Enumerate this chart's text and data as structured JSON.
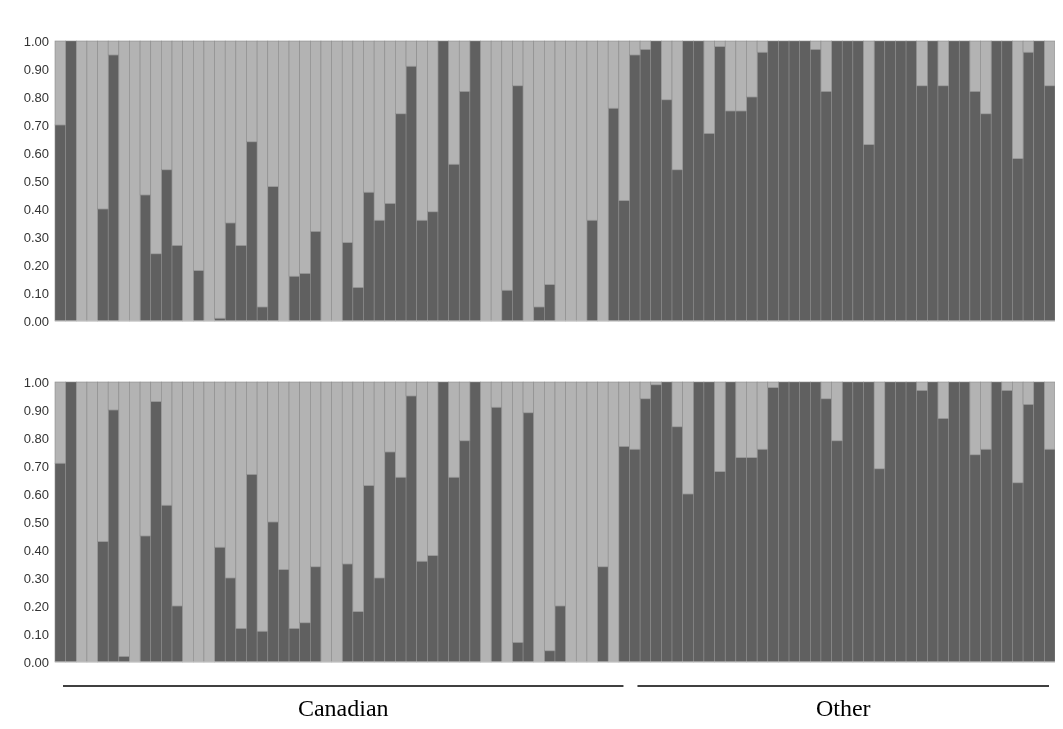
{
  "chart_data": [
    {
      "type": "bar",
      "stacked": true,
      "tick_labels": "y",
      "categories": [
        null,
        null,
        null,
        null,
        null,
        null,
        null,
        null,
        null,
        null,
        null,
        null,
        null,
        null,
        null,
        null,
        null,
        null,
        null,
        null,
        null,
        null,
        null,
        null,
        null,
        null,
        null,
        null,
        null,
        null,
        null,
        null,
        null,
        null,
        null,
        null,
        null,
        null,
        null,
        null,
        null,
        null,
        null,
        null,
        null,
        null,
        null,
        null,
        null,
        null,
        null,
        null,
        null,
        null,
        null,
        null,
        null,
        null,
        null,
        null,
        null,
        null,
        null,
        null,
        null,
        null,
        null,
        null,
        null,
        null,
        null,
        null,
        null,
        null,
        null,
        null,
        null,
        null,
        null,
        null,
        null,
        null,
        null,
        null,
        null,
        null,
        null,
        null,
        null,
        null,
        null,
        null,
        null,
        null
      ],
      "ylim": [
        0,
        1
      ],
      "yticks": [
        {
          "value": 0,
          "label": "0.00"
        },
        {
          "value": 0.1,
          "label": "0.10"
        },
        {
          "value": 0.2,
          "label": "0.20"
        },
        {
          "value": 0.3,
          "label": "0.30"
        },
        {
          "value": 0.4,
          "label": "0.40"
        },
        {
          "value": 0.5,
          "label": "0.50"
        },
        {
          "value": 0.6,
          "label": "0.60"
        },
        {
          "value": 0.7,
          "label": "0.70"
        },
        {
          "value": 0.8,
          "label": "0.80"
        },
        {
          "value": 0.9,
          "label": "0.90"
        },
        {
          "value": 1,
          "label": "1.00"
        }
      ],
      "series": [
        {
          "color": "#606060",
          "values": [
            0.7,
            1,
            0,
            0,
            0.4,
            0.95,
            0,
            0,
            0.45,
            0.24,
            0.54,
            0.27,
            0,
            0.18,
            0,
            0.01,
            0.35,
            0.27,
            0.64,
            0.05,
            0.48,
            0,
            0.16,
            0.17,
            0.32,
            0,
            0,
            0.28,
            0.12,
            0.46,
            0.36,
            0.42,
            0.74,
            0.91,
            0.36,
            0.39,
            1,
            0.56,
            0.82,
            1,
            0,
            0,
            0.11,
            0.84,
            0,
            0.05,
            0.13,
            0,
            0,
            0,
            0.36,
            0,
            0.76,
            0.43,
            0.95,
            0.97,
            1,
            0.79,
            0.54,
            1,
            1,
            0.67,
            0.98,
            0.75,
            0.75,
            0.8,
            0.96,
            1,
            1,
            1,
            1,
            0.97,
            0.82,
            1,
            1,
            1,
            0.63,
            1,
            1,
            1,
            1,
            0.84,
            1,
            0.84,
            1,
            1,
            0.82,
            0.74,
            1,
            1,
            0.58,
            0.96,
            1,
            0.84
          ]
        },
        {
          "color": "#b3b3b3",
          "values": [
            0.3,
            0,
            1,
            1,
            0.6,
            0.05,
            1,
            1,
            0.55,
            0.76,
            0.46,
            0.73,
            1,
            0.82,
            1,
            0.99,
            0.65,
            0.73,
            0.36,
            0.95,
            0.52,
            1,
            0.84,
            0.83,
            0.68,
            1,
            1,
            0.72,
            0.88,
            0.54,
            0.64,
            0.58,
            0.26,
            0.09,
            0.64,
            0.61,
            0,
            0.44,
            0.18,
            0,
            1,
            1,
            0.89,
            0.16,
            1,
            0.95,
            0.87,
            1,
            1,
            1,
            0.64,
            1,
            0.24,
            0.57,
            0.05,
            0.03,
            0,
            0.21,
            0.46,
            0,
            0,
            0.33,
            0.02,
            0.25,
            0.25,
            0.2,
            0.04,
            0,
            0,
            0,
            0,
            0.03,
            0.18,
            0,
            0,
            0,
            0.37,
            0,
            0,
            0,
            0,
            0.16,
            0,
            0.16,
            0,
            0,
            0.18,
            0.26,
            0,
            0,
            0.42,
            0.04,
            0,
            0.16
          ]
        }
      ]
    },
    {
      "type": "bar",
      "stacked": true,
      "tick_labels": "y",
      "categories": [
        null,
        null,
        null,
        null,
        null,
        null,
        null,
        null,
        null,
        null,
        null,
        null,
        null,
        null,
        null,
        null,
        null,
        null,
        null,
        null,
        null,
        null,
        null,
        null,
        null,
        null,
        null,
        null,
        null,
        null,
        null,
        null,
        null,
        null,
        null,
        null,
        null,
        null,
        null,
        null,
        null,
        null,
        null,
        null,
        null,
        null,
        null,
        null,
        null,
        null,
        null,
        null,
        null,
        null,
        null,
        null,
        null,
        null,
        null,
        null,
        null,
        null,
        null,
        null,
        null,
        null,
        null,
        null,
        null,
        null,
        null,
        null,
        null,
        null,
        null,
        null,
        null,
        null,
        null,
        null,
        null,
        null,
        null,
        null,
        null,
        null,
        null,
        null,
        null,
        null,
        null,
        null,
        null,
        null
      ],
      "ylim": [
        0,
        1
      ],
      "yticks": [
        {
          "value": 0,
          "label": "0.00"
        },
        {
          "value": 0.1,
          "label": "0.10"
        },
        {
          "value": 0.2,
          "label": "0.20"
        },
        {
          "value": 0.3,
          "label": "0.30"
        },
        {
          "value": 0.4,
          "label": "0.40"
        },
        {
          "value": 0.5,
          "label": "0.50"
        },
        {
          "value": 0.6,
          "label": "0.60"
        },
        {
          "value": 0.7,
          "label": "0.70"
        },
        {
          "value": 0.8,
          "label": "0.80"
        },
        {
          "value": 0.9,
          "label": "0.90"
        },
        {
          "value": 1,
          "label": "1.00"
        }
      ],
      "annotations": [
        "Canadian",
        "Other"
      ],
      "series": [
        {
          "color": "#606060",
          "values": [
            0.71,
            1,
            0,
            0,
            0.43,
            0.9,
            0.02,
            0,
            0.45,
            0.93,
            0.56,
            0.2,
            0,
            0,
            0,
            0.41,
            0.3,
            0.12,
            0.67,
            0.11,
            0.5,
            0.33,
            0.12,
            0.14,
            0.34,
            0,
            0,
            0.35,
            0.18,
            0.63,
            0.3,
            0.75,
            0.66,
            0.95,
            0.36,
            0.38,
            1,
            0.66,
            0.79,
            1,
            0,
            0.91,
            0,
            0.07,
            0.89,
            0,
            0.04,
            0.2,
            0,
            0,
            0,
            0.34,
            0,
            0.77,
            0.76,
            0.94,
            0.99,
            1,
            0.84,
            0.6,
            1,
            1,
            0.68,
            1,
            0.73,
            0.73,
            0.76,
            0.98,
            1,
            1,
            1,
            1,
            0.94,
            0.79,
            1,
            1,
            1,
            0.69,
            1,
            1,
            1,
            0.97,
            1,
            0.87,
            1,
            1,
            0.74,
            0.76,
            1,
            0.97,
            0.64,
            0.92,
            1,
            0.76
          ]
        },
        {
          "color": "#b3b3b3",
          "values": [
            0.29,
            0,
            1,
            1,
            0.57,
            0.1,
            0.98,
            1,
            0.55,
            0.07,
            0.44,
            0.8,
            1,
            1,
            1,
            0.59,
            0.7,
            0.88,
            0.33,
            0.89,
            0.5,
            0.67,
            0.88,
            0.86,
            0.66,
            1,
            1,
            0.65,
            0.82,
            0.37,
            0.7,
            0.25,
            0.34,
            0.05,
            0.64,
            0.62,
            0,
            0.34,
            0.21,
            0,
            1,
            0.09,
            1,
            0.93,
            0.11,
            1,
            0.96,
            0.8,
            1,
            1,
            1,
            0.66,
            1,
            0.23,
            0.24,
            0.06,
            0.01,
            0,
            0.16,
            0.4,
            0,
            0,
            0.32,
            0,
            0.27,
            0.27,
            0.24,
            0.02,
            0,
            0,
            0,
            0,
            0.06,
            0.21,
            0,
            0,
            0,
            0.31,
            0,
            0,
            0,
            0.03,
            0,
            0.13,
            0,
            0,
            0.26,
            0.24,
            0,
            0.03,
            0.36,
            0.08,
            0,
            0.24
          ]
        }
      ]
    }
  ]
}
